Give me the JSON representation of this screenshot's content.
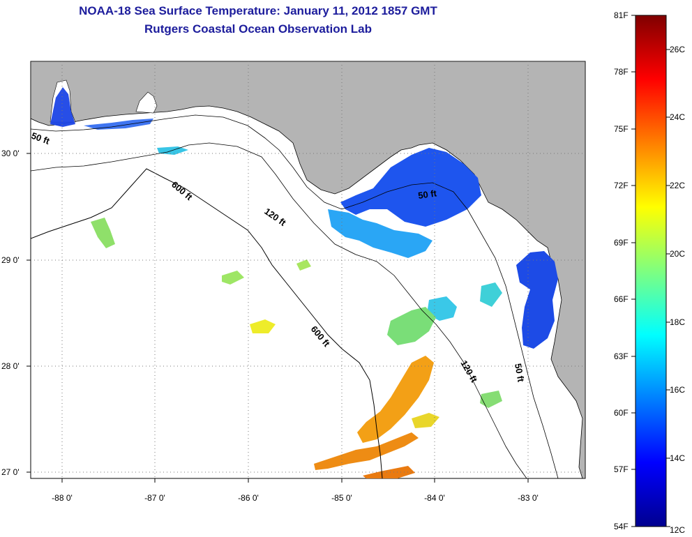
{
  "title": "NOAA-18 Sea Surface Temperature:  January 11, 2012 1857 GMT",
  "subtitle": "Rutgers Coastal Ocean Observation Lab",
  "lon_ticks": [
    "-88 0'",
    "-87 0'",
    "-86 0'",
    "-85 0'",
    "-84 0'",
    "-83 0'"
  ],
  "lat_ticks": [
    "30 0'",
    "29 0'",
    "28 0'",
    "27 0'"
  ],
  "contours": {
    "c50_a": "50 ft",
    "c50_b": "50 ft",
    "c50_c": "50 ft",
    "c120_a": "120 ft",
    "c120_b": "120 ft",
    "c600_a": "600 ft",
    "c600_b": "600 ft"
  },
  "colorbar": {
    "fahrenheit": [
      "81F",
      "78F",
      "75F",
      "72F",
      "69F",
      "66F",
      "63F",
      "60F",
      "57F",
      "54F"
    ],
    "celsius": [
      "26C",
      "24C",
      "22C",
      "20C",
      "18C",
      "16C",
      "14C",
      "12C"
    ]
  },
  "colors": {
    "land": "#b4b4b4",
    "title": "#1c1c9c",
    "cold": "#1a3fe0",
    "warm": "#f08a10"
  }
}
